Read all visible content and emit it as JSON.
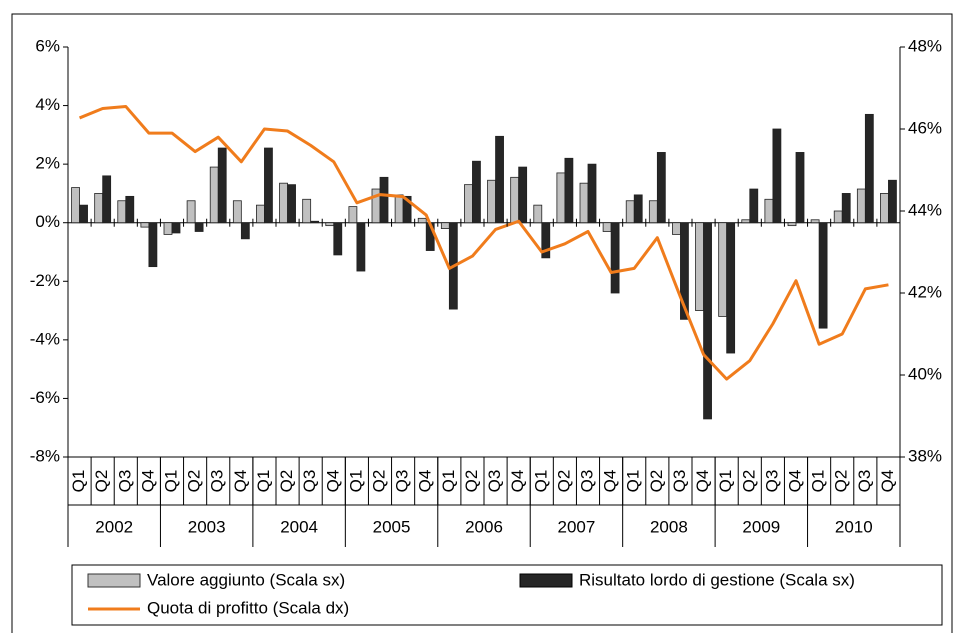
{
  "chart_data": {
    "type": "combo",
    "categories": [
      "Q1",
      "Q2",
      "Q3",
      "Q4",
      "Q1",
      "Q2",
      "Q3",
      "Q4",
      "Q1",
      "Q2",
      "Q3",
      "Q4",
      "Q1",
      "Q2",
      "Q3",
      "Q4",
      "Q1",
      "Q2",
      "Q3",
      "Q4",
      "Q1",
      "Q2",
      "Q3",
      "Q4",
      "Q1",
      "Q2",
      "Q3",
      "Q4",
      "Q1",
      "Q2",
      "Q3",
      "Q4",
      "Q1",
      "Q2",
      "Q3",
      "Q4"
    ],
    "years": [
      "2002",
      "2003",
      "2004",
      "2005",
      "2006",
      "2007",
      "2008",
      "2009",
      "2010"
    ],
    "series": [
      {
        "name": "Valore aggiunto (Scala sx)",
        "type": "bar",
        "color": "#c0c0c0",
        "values": [
          1.2,
          1.0,
          0.75,
          -0.15,
          -0.4,
          0.75,
          1.9,
          0.75,
          0.6,
          1.35,
          0.8,
          -0.1,
          0.55,
          1.15,
          0.95,
          0.15,
          -0.2,
          1.3,
          1.45,
          1.55,
          0.6,
          1.7,
          1.35,
          -0.3,
          0.75,
          0.75,
          -0.4,
          -3.0,
          -3.2,
          0.1,
          0.8,
          -0.1,
          0.1,
          0.4,
          1.15,
          1.0
        ]
      },
      {
        "name": "Risultato lordo di gestione (Scala sx)",
        "type": "bar",
        "color": "#262626",
        "values": [
          0.6,
          1.6,
          0.9,
          -1.5,
          -0.35,
          -0.3,
          2.55,
          -0.55,
          2.55,
          1.3,
          0.05,
          -1.1,
          -1.65,
          1.55,
          0.9,
          -0.95,
          -2.95,
          2.1,
          2.95,
          1.9,
          -1.2,
          2.2,
          2.0,
          -2.4,
          0.95,
          2.4,
          -3.3,
          -6.7,
          -4.45,
          1.15,
          3.2,
          2.4,
          -3.6,
          1.0,
          3.7,
          1.45
        ]
      },
      {
        "name": "Quota di profitto (Scala dx)",
        "type": "line",
        "axis": "y2",
        "color": "#f07c1c",
        "values": [
          46.27,
          46.5,
          46.55,
          45.9,
          45.9,
          45.45,
          45.8,
          45.2,
          46.0,
          45.95,
          45.6,
          45.2,
          44.2,
          44.4,
          44.35,
          43.9,
          42.6,
          42.9,
          43.55,
          43.75,
          43.0,
          43.2,
          43.5,
          42.5,
          42.6,
          43.35,
          41.9,
          40.5,
          39.9,
          40.35,
          41.25,
          42.3,
          40.75,
          41.0,
          42.1,
          42.2
        ]
      }
    ],
    "ylim": [
      -8,
      6
    ],
    "yticks": [
      {
        "value": -8,
        "label": "-8%"
      },
      {
        "value": -6,
        "label": "-6%"
      },
      {
        "value": -4,
        "label": "-4%"
      },
      {
        "value": -2,
        "label": "-2%"
      },
      {
        "value": 0,
        "label": "0%"
      },
      {
        "value": 2,
        "label": "2%"
      },
      {
        "value": 4,
        "label": "4%"
      },
      {
        "value": 6,
        "label": "6%"
      }
    ],
    "y2lim": [
      38,
      48
    ],
    "y2ticks": [
      {
        "value": 38,
        "label": "38%"
      },
      {
        "value": 40,
        "label": "40%"
      },
      {
        "value": 42,
        "label": "42%"
      },
      {
        "value": 44,
        "label": "44%"
      },
      {
        "value": 46,
        "label": "46%"
      },
      {
        "value": 48,
        "label": "48%"
      }
    ]
  }
}
